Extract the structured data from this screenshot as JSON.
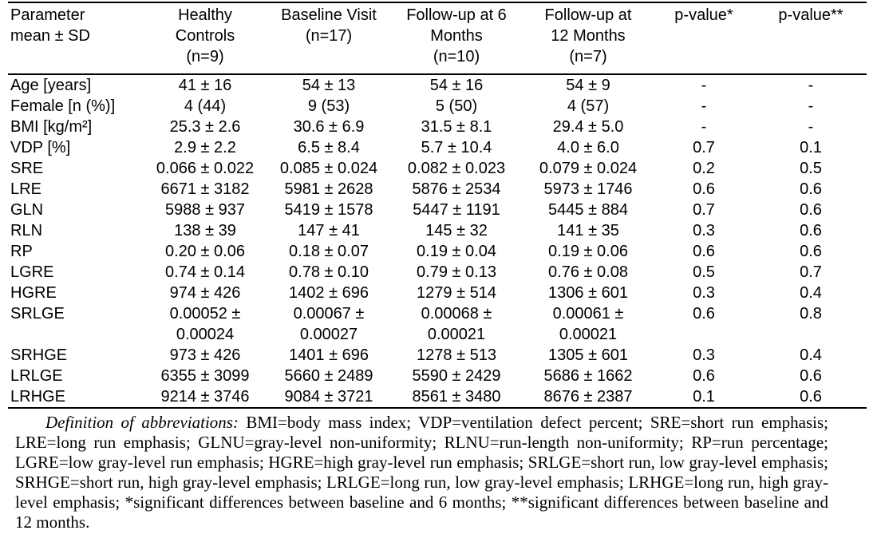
{
  "colors": {
    "background": "#ffffff",
    "text": "#000000",
    "rule": "#000000"
  },
  "table": {
    "columns": [
      {
        "id": "parameter",
        "label": "Parameter\nmean ± SD"
      },
      {
        "id": "healthy-controls",
        "label": "Healthy\nControls\n(n=9)"
      },
      {
        "id": "baseline-visit",
        "label": "Baseline Visit\n(n=17)"
      },
      {
        "id": "followup-6-months",
        "label": "Follow-up at 6\nMonths\n(n=10)"
      },
      {
        "id": "followup-12-months",
        "label": "Follow-up at\n12 Months\n(n=7)"
      },
      {
        "id": "p-value-6m",
        "label": "p-value*"
      },
      {
        "id": "p-value-12m",
        "label": "p-value**"
      }
    ],
    "rows": [
      {
        "param": "Age [years]",
        "values": [
          "41 ± 16",
          "54 ± 13",
          "54 ± 16",
          "54 ± 9",
          "-",
          "-"
        ]
      },
      {
        "param": "Female [n (%)]",
        "values": [
          "4 (44)",
          "9 (53)",
          "5 (50)",
          "4 (57)",
          "-",
          "-"
        ]
      },
      {
        "param": "BMI [kg/m²]",
        "values": [
          "25.3 ± 2.6",
          "30.6 ± 6.9",
          "31.5 ± 8.1",
          "29.4 ± 5.0",
          "-",
          "-"
        ]
      },
      {
        "param": "VDP [%]",
        "values": [
          "2.9 ± 2.2",
          "6.5 ± 8.4",
          "5.7 ± 10.4",
          "4.0 ± 6.0",
          "0.7",
          "0.1"
        ]
      },
      {
        "param": "SRE",
        "values": [
          "0.066 ± 0.022",
          "0.085 ± 0.024",
          "0.082 ± 0.023",
          "0.079 ± 0.024",
          "0.2",
          "0.5"
        ]
      },
      {
        "param": "LRE",
        "values": [
          "6671 ± 3182",
          "5981 ± 2628",
          "5876 ± 2534",
          "5973 ± 1746",
          "0.6",
          "0.6"
        ]
      },
      {
        "param": "GLN",
        "values": [
          "5988 ± 937",
          "5419 ± 1578",
          "5447 ± 1191",
          "5445 ± 884",
          "0.7",
          "0.6"
        ]
      },
      {
        "param": "RLN",
        "values": [
          "138 ± 39",
          "147 ± 41",
          "145 ± 32",
          "141 ± 35",
          "0.3",
          "0.6"
        ]
      },
      {
        "param": "RP",
        "values": [
          "0.20 ± 0.06",
          "0.18 ± 0.07",
          "0.19 ± 0.04",
          "0.19 ± 0.06",
          "0.6",
          "0.6"
        ]
      },
      {
        "param": "LGRE",
        "values": [
          "0.74 ± 0.14",
          "0.78 ± 0.10",
          "0.79 ± 0.13",
          "0.76 ± 0.08",
          "0.5",
          "0.7"
        ]
      },
      {
        "param": "HGRE",
        "values": [
          "974 ± 426",
          "1402 ± 696",
          "1279 ± 514",
          "1306 ± 601",
          "0.3",
          "0.4"
        ]
      },
      {
        "param": "SRLGE",
        "values": [
          "0.00052 ±\n0.00024",
          "0.00067 ±\n0.00027",
          "0.00068 ±\n0.00021",
          "0.00061 ±\n0.00021",
          "0.6",
          "0.8"
        ]
      },
      {
        "param": "SRHGE",
        "values": [
          "973 ± 426",
          "1401 ± 696",
          "1278 ± 513",
          "1305 ± 601",
          "0.3",
          "0.4"
        ]
      },
      {
        "param": "LRLGE",
        "values": [
          "6355 ± 3099",
          "5660 ± 2489",
          "5590 ± 2429",
          "5686 ± 1662",
          "0.6",
          "0.6"
        ]
      },
      {
        "param": "LRHGE",
        "values": [
          "9214 ± 3746",
          "9084 ± 3721",
          "8561 ± 3480",
          "8676 ± 2387",
          "0.1",
          "0.6"
        ]
      }
    ]
  },
  "footnote": {
    "label": "Definition of abbreviations:",
    "text": "BMI=body mass index; VDP=ventilation defect percent; SRE=short run emphasis; LRE=long run emphasis; GLNU=gray-level non-uniformity; RLNU=run-length non-uniformity; RP=run percentage; LGRE=low gray-level run emphasis; HGRE=high gray-level run emphasis; SRLGE=short run, low gray-level emphasis; SRHGE=short run, high gray-level emphasis; LRLGE=long run, low gray-level emphasis; LRHGE=long run, high gray-level emphasis; *significant differences between baseline and 6 months; **significant differences between baseline and 12 months."
  }
}
